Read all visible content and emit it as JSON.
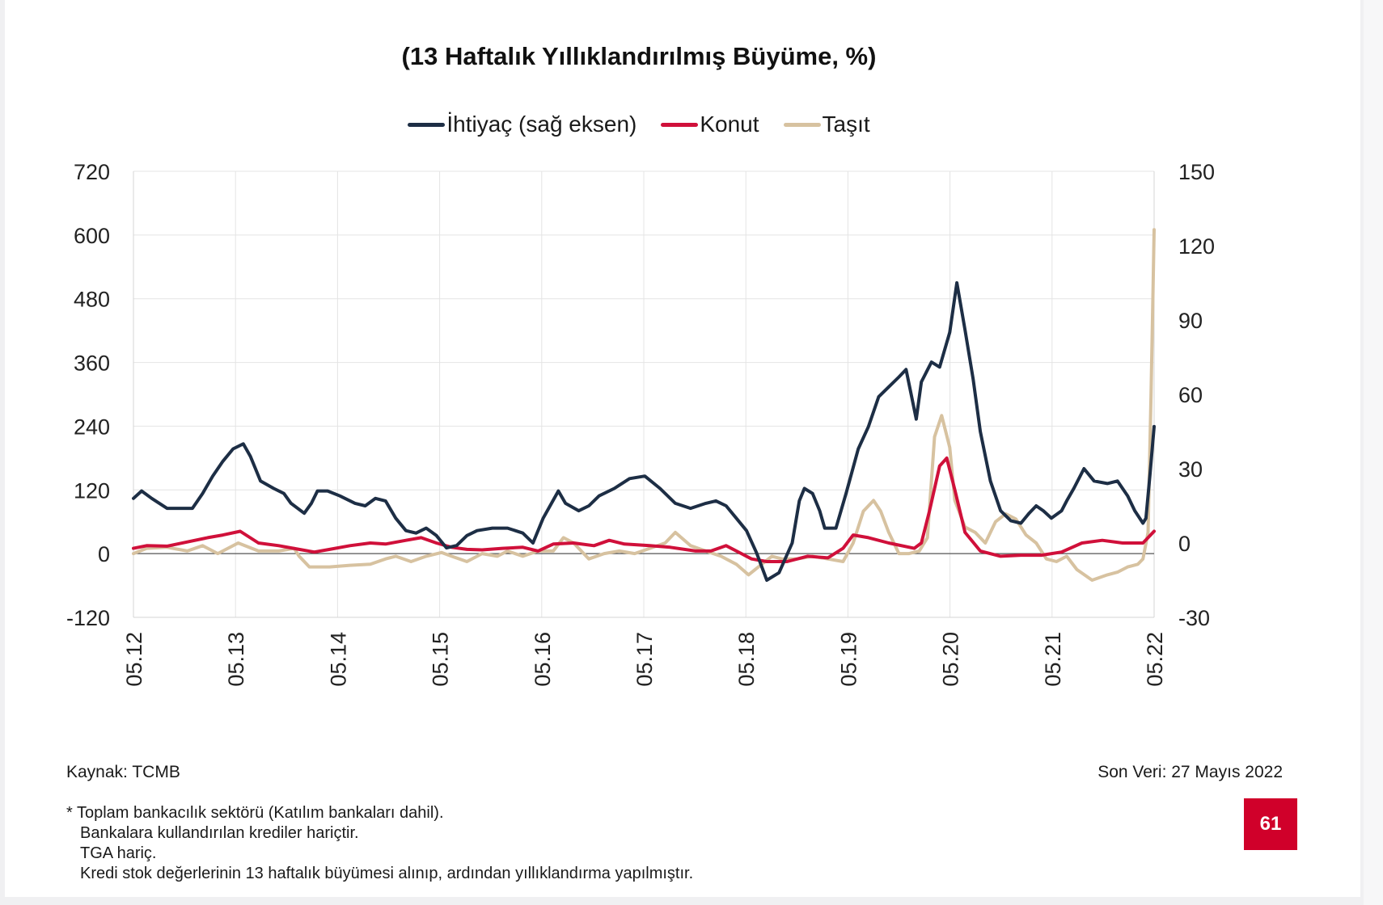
{
  "title": "(13 Haftalık Yıllıklandırılmış Büyüme, %)",
  "legend": [
    {
      "label": "İhtiyaç (sağ eksen)",
      "color": "#1d2e45"
    },
    {
      "label": "Konut",
      "color": "#d0103a"
    },
    {
      "label": "Taşıt",
      "color": "#d7c2a0"
    }
  ],
  "footer": {
    "source": "Kaynak: TCMB",
    "last_data": "Son Veri: 27 Mayıs 2022",
    "notes": [
      "* Toplam bankacılık sektörü (Katılım bankaları dahil).",
      "Bankalara kullandırılan krediler hariçtir.",
      "TGA hariç.",
      "Kredi stok değerlerinin 13 haftalık büyümesi alınıp, ardından yıllıklandırma yapılmıştır."
    ],
    "page_number": "61"
  },
  "chart_data": {
    "type": "line",
    "title": "(13 Haftalık Yıllıklandırılmış Büyüme, %)",
    "x_ticks": [
      "05.12",
      "05.13",
      "05.14",
      "05.15",
      "05.16",
      "05.17",
      "05.18",
      "05.19",
      "05.20",
      "05.21",
      "05.22"
    ],
    "x_range": [
      2012.37,
      2022.41
    ],
    "y_left": {
      "ticks": [
        -120,
        0,
        120,
        240,
        360,
        480,
        600,
        720
      ],
      "range": [
        -120,
        720
      ]
    },
    "y_right": {
      "ticks": [
        -30,
        0,
        30,
        60,
        90,
        120,
        150
      ],
      "range": [
        -30,
        150
      ]
    },
    "grid": true,
    "legend_position": "top-center",
    "series": [
      {
        "name": "İhtiyaç (sağ eksen)",
        "axis": "right",
        "color": "#1d2e45",
        "points": [
          [
            2012.37,
            18
          ],
          [
            2012.45,
            21
          ],
          [
            2012.55,
            18
          ],
          [
            2012.7,
            14
          ],
          [
            2012.85,
            14
          ],
          [
            2012.95,
            14
          ],
          [
            2013.05,
            20
          ],
          [
            2013.15,
            27
          ],
          [
            2013.25,
            33
          ],
          [
            2013.35,
            38
          ],
          [
            2013.45,
            40
          ],
          [
            2013.52,
            35
          ],
          [
            2013.62,
            25
          ],
          [
            2013.75,
            22
          ],
          [
            2013.85,
            20
          ],
          [
            2013.92,
            16
          ],
          [
            2014.05,
            12
          ],
          [
            2014.12,
            16
          ],
          [
            2014.18,
            21
          ],
          [
            2014.28,
            21
          ],
          [
            2014.4,
            19
          ],
          [
            2014.55,
            16
          ],
          [
            2014.65,
            15
          ],
          [
            2014.75,
            18
          ],
          [
            2014.85,
            17
          ],
          [
            2014.95,
            10
          ],
          [
            2015.05,
            5
          ],
          [
            2015.15,
            4
          ],
          [
            2015.25,
            6
          ],
          [
            2015.35,
            3
          ],
          [
            2015.45,
            -2
          ],
          [
            2015.55,
            -1
          ],
          [
            2015.65,
            3
          ],
          [
            2015.75,
            5
          ],
          [
            2015.9,
            6
          ],
          [
            2016.05,
            6
          ],
          [
            2016.2,
            4
          ],
          [
            2016.3,
            0
          ],
          [
            2016.4,
            10
          ],
          [
            2016.55,
            21
          ],
          [
            2016.62,
            16
          ],
          [
            2016.75,
            13
          ],
          [
            2016.85,
            15
          ],
          [
            2016.95,
            19
          ],
          [
            2017.1,
            22
          ],
          [
            2017.25,
            26
          ],
          [
            2017.4,
            27
          ],
          [
            2017.55,
            22
          ],
          [
            2017.7,
            16
          ],
          [
            2017.85,
            14
          ],
          [
            2018.0,
            16
          ],
          [
            2018.1,
            17
          ],
          [
            2018.2,
            15
          ],
          [
            2018.3,
            10
          ],
          [
            2018.4,
            5
          ],
          [
            2018.5,
            -4
          ],
          [
            2018.6,
            -15
          ],
          [
            2018.72,
            -12
          ],
          [
            2018.85,
            0
          ],
          [
            2018.92,
            17
          ],
          [
            2018.97,
            22
          ],
          [
            2019.05,
            20
          ],
          [
            2019.12,
            13
          ],
          [
            2019.17,
            6
          ],
          [
            2019.28,
            6
          ],
          [
            2019.38,
            20
          ],
          [
            2019.5,
            38
          ],
          [
            2019.6,
            47
          ],
          [
            2019.7,
            59
          ],
          [
            2019.8,
            63
          ],
          [
            2019.9,
            67
          ],
          [
            2019.97,
            70
          ],
          [
            2020.07,
            50
          ],
          [
            2020.12,
            65
          ],
          [
            2020.22,
            73
          ],
          [
            2020.3,
            71
          ],
          [
            2020.4,
            85
          ],
          [
            2020.47,
            105
          ],
          [
            2020.55,
            86
          ],
          [
            2020.63,
            66
          ],
          [
            2020.7,
            45
          ],
          [
            2020.8,
            25
          ],
          [
            2020.9,
            13
          ],
          [
            2021.0,
            9
          ],
          [
            2021.1,
            8
          ],
          [
            2021.18,
            12
          ],
          [
            2021.25,
            15
          ],
          [
            2021.32,
            13
          ],
          [
            2021.4,
            10
          ],
          [
            2021.5,
            13
          ],
          [
            2021.55,
            17
          ],
          [
            2021.62,
            22
          ],
          [
            2021.72,
            30
          ],
          [
            2021.82,
            25
          ],
          [
            2021.95,
            24
          ],
          [
            2022.05,
            25
          ],
          [
            2022.15,
            19
          ],
          [
            2022.22,
            13
          ],
          [
            2022.3,
            8
          ],
          [
            2022.33,
            10
          ],
          [
            2022.37,
            28
          ],
          [
            2022.41,
            47
          ]
        ]
      },
      {
        "name": "Konut",
        "axis": "left",
        "color": "#d0103a",
        "points": [
          [
            2012.37,
            10
          ],
          [
            2012.5,
            15
          ],
          [
            2012.7,
            14
          ],
          [
            2012.9,
            22
          ],
          [
            2013.1,
            30
          ],
          [
            2013.25,
            35
          ],
          [
            2013.42,
            42
          ],
          [
            2013.6,
            20
          ],
          [
            2013.8,
            15
          ],
          [
            2014.0,
            8
          ],
          [
            2014.15,
            3
          ],
          [
            2014.3,
            8
          ],
          [
            2014.5,
            15
          ],
          [
            2014.7,
            20
          ],
          [
            2014.85,
            18
          ],
          [
            2015.05,
            25
          ],
          [
            2015.2,
            30
          ],
          [
            2015.35,
            20
          ],
          [
            2015.5,
            12
          ],
          [
            2015.65,
            8
          ],
          [
            2015.8,
            7
          ],
          [
            2016.0,
            10
          ],
          [
            2016.2,
            12
          ],
          [
            2016.35,
            5
          ],
          [
            2016.5,
            18
          ],
          [
            2016.7,
            20
          ],
          [
            2016.9,
            15
          ],
          [
            2017.05,
            25
          ],
          [
            2017.2,
            18
          ],
          [
            2017.45,
            15
          ],
          [
            2017.65,
            12
          ],
          [
            2017.9,
            5
          ],
          [
            2018.05,
            5
          ],
          [
            2018.2,
            15
          ],
          [
            2018.35,
            0
          ],
          [
            2018.45,
            -10
          ],
          [
            2018.6,
            -15
          ],
          [
            2018.8,
            -15
          ],
          [
            2019.0,
            -5
          ],
          [
            2019.2,
            -8
          ],
          [
            2019.35,
            10
          ],
          [
            2019.45,
            35
          ],
          [
            2019.6,
            30
          ],
          [
            2019.8,
            20
          ],
          [
            2020.05,
            10
          ],
          [
            2020.12,
            20
          ],
          [
            2020.2,
            80
          ],
          [
            2020.3,
            165
          ],
          [
            2020.37,
            180
          ],
          [
            2020.45,
            120
          ],
          [
            2020.55,
            40
          ],
          [
            2020.7,
            5
          ],
          [
            2020.9,
            -5
          ],
          [
            2021.1,
            -3
          ],
          [
            2021.3,
            -3
          ],
          [
            2021.5,
            3
          ],
          [
            2021.7,
            20
          ],
          [
            2021.9,
            25
          ],
          [
            2022.1,
            20
          ],
          [
            2022.3,
            20
          ],
          [
            2022.41,
            42
          ]
        ]
      },
      {
        "name": "Taşıt",
        "axis": "left",
        "color": "#d7c2a0",
        "points": [
          [
            2012.37,
            0
          ],
          [
            2012.5,
            10
          ],
          [
            2012.7,
            12
          ],
          [
            2012.9,
            5
          ],
          [
            2013.05,
            15
          ],
          [
            2013.2,
            0
          ],
          [
            2013.4,
            20
          ],
          [
            2013.6,
            5
          ],
          [
            2013.8,
            5
          ],
          [
            2013.95,
            10
          ],
          [
            2014.0,
            -5
          ],
          [
            2014.1,
            -25
          ],
          [
            2014.3,
            -25
          ],
          [
            2014.5,
            -22
          ],
          [
            2014.7,
            -20
          ],
          [
            2014.85,
            -10
          ],
          [
            2014.95,
            -5
          ],
          [
            2015.1,
            -15
          ],
          [
            2015.25,
            -5
          ],
          [
            2015.4,
            2
          ],
          [
            2015.5,
            -5
          ],
          [
            2015.65,
            -15
          ],
          [
            2015.8,
            0
          ],
          [
            2015.95,
            -5
          ],
          [
            2016.05,
            5
          ],
          [
            2016.2,
            -5
          ],
          [
            2016.35,
            5
          ],
          [
            2016.5,
            5
          ],
          [
            2016.6,
            30
          ],
          [
            2016.7,
            20
          ],
          [
            2016.85,
            -10
          ],
          [
            2017.0,
            0
          ],
          [
            2017.15,
            5
          ],
          [
            2017.3,
            0
          ],
          [
            2017.45,
            10
          ],
          [
            2017.6,
            20
          ],
          [
            2017.7,
            40
          ],
          [
            2017.85,
            15
          ],
          [
            2018.0,
            5
          ],
          [
            2018.15,
            -5
          ],
          [
            2018.3,
            -20
          ],
          [
            2018.42,
            -40
          ],
          [
            2018.55,
            -20
          ],
          [
            2018.65,
            -5
          ],
          [
            2018.75,
            -10
          ],
          [
            2018.9,
            -10
          ],
          [
            2019.05,
            -5
          ],
          [
            2019.2,
            -10
          ],
          [
            2019.35,
            -15
          ],
          [
            2019.45,
            20
          ],
          [
            2019.55,
            80
          ],
          [
            2019.65,
            100
          ],
          [
            2019.72,
            80
          ],
          [
            2019.8,
            40
          ],
          [
            2019.9,
            0
          ],
          [
            2020.0,
            0
          ],
          [
            2020.1,
            5
          ],
          [
            2020.18,
            30
          ],
          [
            2020.25,
            220
          ],
          [
            2020.32,
            260
          ],
          [
            2020.4,
            200
          ],
          [
            2020.45,
            100
          ],
          [
            2020.55,
            50
          ],
          [
            2020.65,
            40
          ],
          [
            2020.75,
            20
          ],
          [
            2020.85,
            60
          ],
          [
            2020.95,
            75
          ],
          [
            2021.05,
            65
          ],
          [
            2021.15,
            35
          ],
          [
            2021.25,
            20
          ],
          [
            2021.35,
            -10
          ],
          [
            2021.45,
            -15
          ],
          [
            2021.55,
            -5
          ],
          [
            2021.65,
            -30
          ],
          [
            2021.8,
            -50
          ],
          [
            2021.95,
            -40
          ],
          [
            2022.05,
            -35
          ],
          [
            2022.15,
            -25
          ],
          [
            2022.25,
            -20
          ],
          [
            2022.3,
            -10
          ],
          [
            2022.35,
            40
          ],
          [
            2022.38,
            300
          ],
          [
            2022.4,
            500
          ],
          [
            2022.41,
            610
          ]
        ]
      }
    ]
  }
}
